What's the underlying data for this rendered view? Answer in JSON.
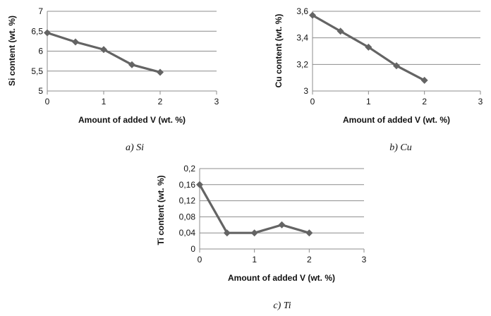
{
  "colors": {
    "series": "#646464",
    "grid": "#8c8c8c",
    "axis": "#8c8c8c",
    "text": "#111111"
  },
  "chart_data": [
    {
      "id": "si",
      "type": "line",
      "caption": "a) Si",
      "xlabel": "Amount of added V (wt. %)",
      "ylabel": "Si content (wt. %)",
      "x": [
        0,
        0.5,
        1,
        1.5,
        2
      ],
      "series": [
        {
          "values": [
            6.46,
            6.23,
            6.04,
            5.66,
            5.47
          ]
        }
      ],
      "xlim": [
        0,
        3
      ],
      "ylim": [
        5,
        7
      ],
      "x_ticks": [
        "0",
        "1",
        "2",
        "3"
      ],
      "y_ticks": [
        "5",
        "5,5",
        "6",
        "6,5",
        "7"
      ],
      "marker": "diamond",
      "grid": "horizontal"
    },
    {
      "id": "cu",
      "type": "line",
      "caption": "b) Cu",
      "xlabel": "Amount of added V (wt. %)",
      "ylabel": "Cu content (wt. %)",
      "x": [
        0,
        0.5,
        1,
        1.5,
        2
      ],
      "series": [
        {
          "values": [
            3.57,
            3.45,
            3.33,
            3.19,
            3.08
          ]
        }
      ],
      "xlim": [
        0,
        3
      ],
      "ylim": [
        3,
        3.6
      ],
      "x_ticks": [
        "0",
        "1",
        "2",
        "3"
      ],
      "y_ticks": [
        "3",
        "3,2",
        "3,4",
        "3,6"
      ],
      "marker": "diamond",
      "grid": "horizontal"
    },
    {
      "id": "ti",
      "type": "line",
      "caption": "c) Ti",
      "xlabel": "Amount of added V (wt. %)",
      "ylabel": "Ti content (wt. %)",
      "x": [
        0,
        0.5,
        1,
        1.5,
        2
      ],
      "series": [
        {
          "values": [
            0.16,
            0.04,
            0.04,
            0.06,
            0.04
          ]
        }
      ],
      "xlim": [
        0,
        3
      ],
      "ylim": [
        0,
        0.2
      ],
      "x_ticks": [
        "0",
        "1",
        "2",
        "3"
      ],
      "y_ticks": [
        "0",
        "0,04",
        "0,08",
        "0,12",
        "0,16",
        "0,2"
      ],
      "marker": "diamond",
      "grid": "horizontal"
    }
  ]
}
